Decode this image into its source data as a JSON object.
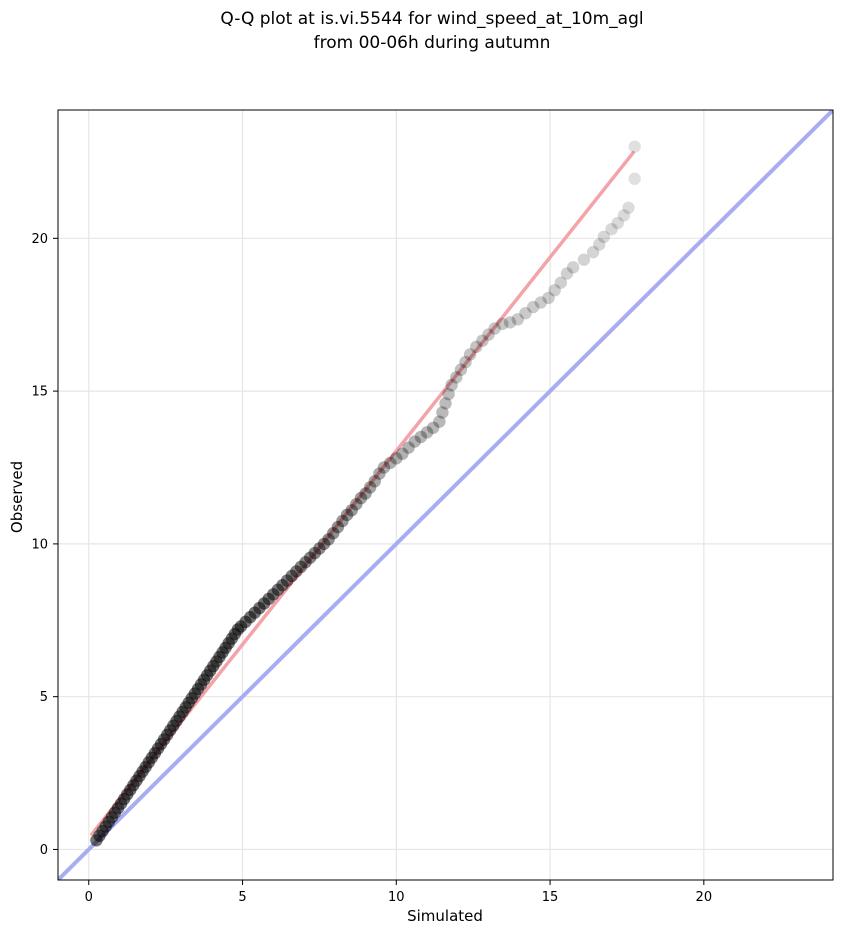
{
  "chart_data": {
    "type": "scatter",
    "title": "Q-Q plot at is.vi.5544 for wind_speed_at_10m_agl",
    "subtitle": "from 00-06h during autumn",
    "xlabel": "Simulated",
    "ylabel": "Observed",
    "xlim": [
      -1,
      24.2
    ],
    "ylim": [
      -1,
      24.2
    ],
    "xticks": [
      0,
      5,
      10,
      15,
      20
    ],
    "yticks": [
      0,
      5,
      10,
      15,
      20
    ],
    "grid": true,
    "colors": {
      "points": "#000000",
      "fit_line": "#f4a3a8",
      "identity_line": "#a8acf2",
      "grid": "#e6e6e6"
    },
    "series": [
      {
        "type": "quantile-points",
        "points": [
          [
            0.25,
            0.3
          ],
          [
            0.35,
            0.45
          ],
          [
            0.45,
            0.6
          ],
          [
            0.55,
            0.75
          ],
          [
            0.65,
            0.9
          ],
          [
            0.75,
            1.05
          ],
          [
            0.85,
            1.2
          ],
          [
            0.95,
            1.35
          ],
          [
            1.05,
            1.5
          ],
          [
            1.15,
            1.65
          ],
          [
            1.25,
            1.8
          ],
          [
            1.35,
            1.95
          ],
          [
            1.45,
            2.1
          ],
          [
            1.55,
            2.25
          ],
          [
            1.65,
            2.4
          ],
          [
            1.75,
            2.55
          ],
          [
            1.85,
            2.7
          ],
          [
            1.95,
            2.85
          ],
          [
            2.05,
            3.0
          ],
          [
            2.15,
            3.15
          ],
          [
            2.25,
            3.3
          ],
          [
            2.35,
            3.45
          ],
          [
            2.45,
            3.6
          ],
          [
            2.55,
            3.75
          ],
          [
            2.65,
            3.9
          ],
          [
            2.75,
            4.05
          ],
          [
            2.85,
            4.2
          ],
          [
            2.95,
            4.35
          ],
          [
            3.05,
            4.5
          ],
          [
            3.15,
            4.65
          ],
          [
            3.25,
            4.8
          ],
          [
            3.35,
            4.95
          ],
          [
            3.45,
            5.1
          ],
          [
            3.55,
            5.25
          ],
          [
            3.65,
            5.4
          ],
          [
            3.75,
            5.55
          ],
          [
            3.85,
            5.7
          ],
          [
            3.95,
            5.85
          ],
          [
            4.05,
            6.0
          ],
          [
            4.15,
            6.15
          ],
          [
            4.25,
            6.3
          ],
          [
            4.35,
            6.45
          ],
          [
            4.45,
            6.6
          ],
          [
            4.55,
            6.75
          ],
          [
            4.65,
            6.9
          ],
          [
            4.75,
            7.05
          ],
          [
            4.85,
            7.2
          ],
          [
            4.95,
            7.3
          ],
          [
            5.1,
            7.45
          ],
          [
            5.25,
            7.6
          ],
          [
            5.4,
            7.75
          ],
          [
            5.55,
            7.9
          ],
          [
            5.7,
            8.05
          ],
          [
            5.85,
            8.2
          ],
          [
            6.0,
            8.35
          ],
          [
            6.15,
            8.5
          ],
          [
            6.3,
            8.65
          ],
          [
            6.45,
            8.8
          ],
          [
            6.6,
            8.95
          ],
          [
            6.75,
            9.1
          ],
          [
            6.9,
            9.25
          ],
          [
            7.05,
            9.4
          ],
          [
            7.2,
            9.55
          ],
          [
            7.35,
            9.7
          ],
          [
            7.5,
            9.85
          ],
          [
            7.65,
            10.0
          ],
          [
            7.8,
            10.15
          ],
          [
            7.95,
            10.35
          ],
          [
            8.1,
            10.55
          ],
          [
            8.25,
            10.75
          ],
          [
            8.4,
            10.95
          ],
          [
            8.55,
            11.1
          ],
          [
            8.7,
            11.3
          ],
          [
            8.85,
            11.5
          ],
          [
            9.0,
            11.65
          ],
          [
            9.15,
            11.85
          ],
          [
            9.3,
            12.05
          ],
          [
            9.45,
            12.3
          ],
          [
            9.6,
            12.5
          ],
          [
            9.8,
            12.65
          ],
          [
            10.0,
            12.8
          ],
          [
            10.2,
            12.95
          ],
          [
            10.4,
            13.15
          ],
          [
            10.6,
            13.35
          ],
          [
            10.8,
            13.5
          ],
          [
            11.0,
            13.65
          ],
          [
            11.2,
            13.8
          ],
          [
            11.4,
            14.0
          ],
          [
            11.5,
            14.3
          ],
          [
            11.6,
            14.6
          ],
          [
            11.7,
            14.9
          ],
          [
            11.8,
            15.2
          ],
          [
            11.95,
            15.45
          ],
          [
            12.1,
            15.7
          ],
          [
            12.25,
            15.95
          ],
          [
            12.4,
            16.2
          ],
          [
            12.6,
            16.45
          ],
          [
            12.8,
            16.65
          ],
          [
            13.0,
            16.85
          ],
          [
            13.2,
            17.05
          ],
          [
            13.45,
            17.2
          ],
          [
            13.7,
            17.25
          ],
          [
            13.95,
            17.35
          ],
          [
            14.2,
            17.55
          ],
          [
            14.45,
            17.75
          ],
          [
            14.7,
            17.9
          ],
          [
            14.95,
            18.05
          ],
          [
            15.15,
            18.3
          ],
          [
            15.35,
            18.55
          ],
          [
            15.55,
            18.85
          ],
          [
            15.75,
            19.05
          ],
          [
            16.1,
            19.3
          ],
          [
            16.4,
            19.55
          ],
          [
            16.6,
            19.8
          ],
          [
            16.75,
            20.05
          ],
          [
            17.0,
            20.3
          ],
          [
            17.2,
            20.5
          ],
          [
            17.4,
            20.75
          ],
          [
            17.55,
            21.0
          ],
          [
            17.75,
            21.95
          ],
          [
            17.75,
            23.0
          ]
        ]
      },
      {
        "type": "fit-line",
        "x": [
          0.1,
          17.7
        ],
        "y": [
          0.5,
          22.8
        ]
      },
      {
        "type": "identity-line",
        "x": [
          -1,
          24.2
        ],
        "y": [
          -1,
          24.2
        ]
      }
    ]
  }
}
